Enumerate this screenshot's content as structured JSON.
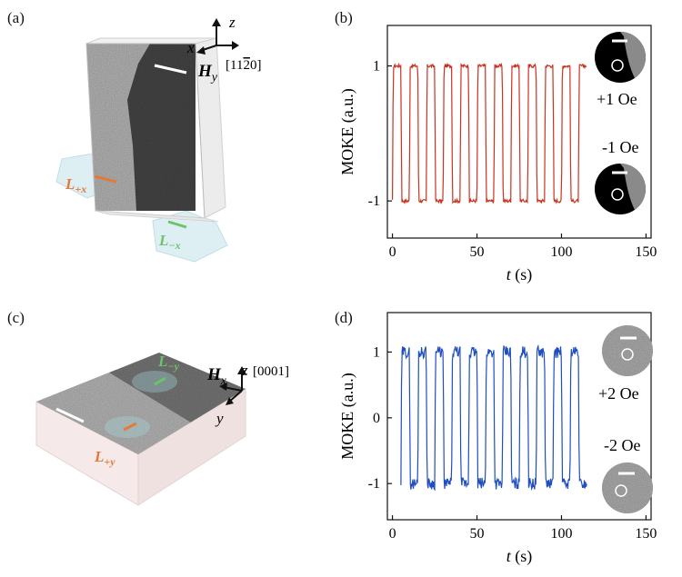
{
  "panels": {
    "a": {
      "label": "(a)",
      "axis_z": "z",
      "axis_x": "x",
      "field": "H",
      "field_sub": "y",
      "direction": "[11",
      "direction_bar": "2",
      "direction_end": "0]",
      "laser_plus": "L",
      "laser_plus_sub": "+x",
      "laser_minus": "L",
      "laser_minus_sub": "−x",
      "colors": {
        "laser_plus": "#e07b39",
        "laser_minus": "#6cc36c"
      }
    },
    "b": {
      "label": "(b)",
      "field_pos": "+1 Oe",
      "field_neg": "-1 Oe"
    },
    "c": {
      "label": "(c)",
      "axis_z": "z",
      "direction": "[0001]",
      "axis_y": "y",
      "field": "H",
      "field_sub": "x",
      "laser_minus": "L",
      "laser_minus_sub": "−y",
      "laser_plus": "L",
      "laser_plus_sub": "+y",
      "colors": {
        "laser_plus": "#e07b39",
        "laser_minus": "#6cc36c"
      }
    },
    "d": {
      "label": "(d)",
      "field_pos": "+2 Oe",
      "field_neg": "-2 Oe"
    }
  },
  "chart_data": [
    {
      "panel": "b",
      "type": "line",
      "xlabel": "t (s)",
      "xlabel_var": "t",
      "xlabel_unit": " (s)",
      "ylabel": "MOKE (a.u.)",
      "xlim": [
        -3,
        153
      ],
      "ylim": [
        -1.55,
        1.6
      ],
      "xticks": [
        0,
        50,
        100,
        150
      ],
      "yticks": [
        -1,
        1
      ],
      "yticklabels": [
        "-1",
        "1"
      ],
      "color": "#c8321e",
      "levels": [
        -1,
        1
      ],
      "period": 10,
      "n_periods": 11,
      "duty": 0.55,
      "t_start": 0,
      "t_end": 115,
      "noise": 0.025
    },
    {
      "panel": "d",
      "type": "line",
      "xlabel": "t (s)",
      "xlabel_var": "t",
      "xlabel_unit": " (s)",
      "ylabel": "MOKE (a.u.)",
      "xlim": [
        -3,
        153
      ],
      "ylim": [
        -1.55,
        1.6
      ],
      "xticks": [
        0,
        50,
        100,
        150
      ],
      "yticks": [
        -1,
        0,
        1
      ],
      "yticklabels": [
        "-1",
        "0",
        "1"
      ],
      "color": "#1f4fbf",
      "levels": [
        -1,
        1
      ],
      "period": 10,
      "n_periods": 11,
      "duty": 0.55,
      "t_start": 5,
      "t_end": 115,
      "noise": 0.09
    }
  ]
}
